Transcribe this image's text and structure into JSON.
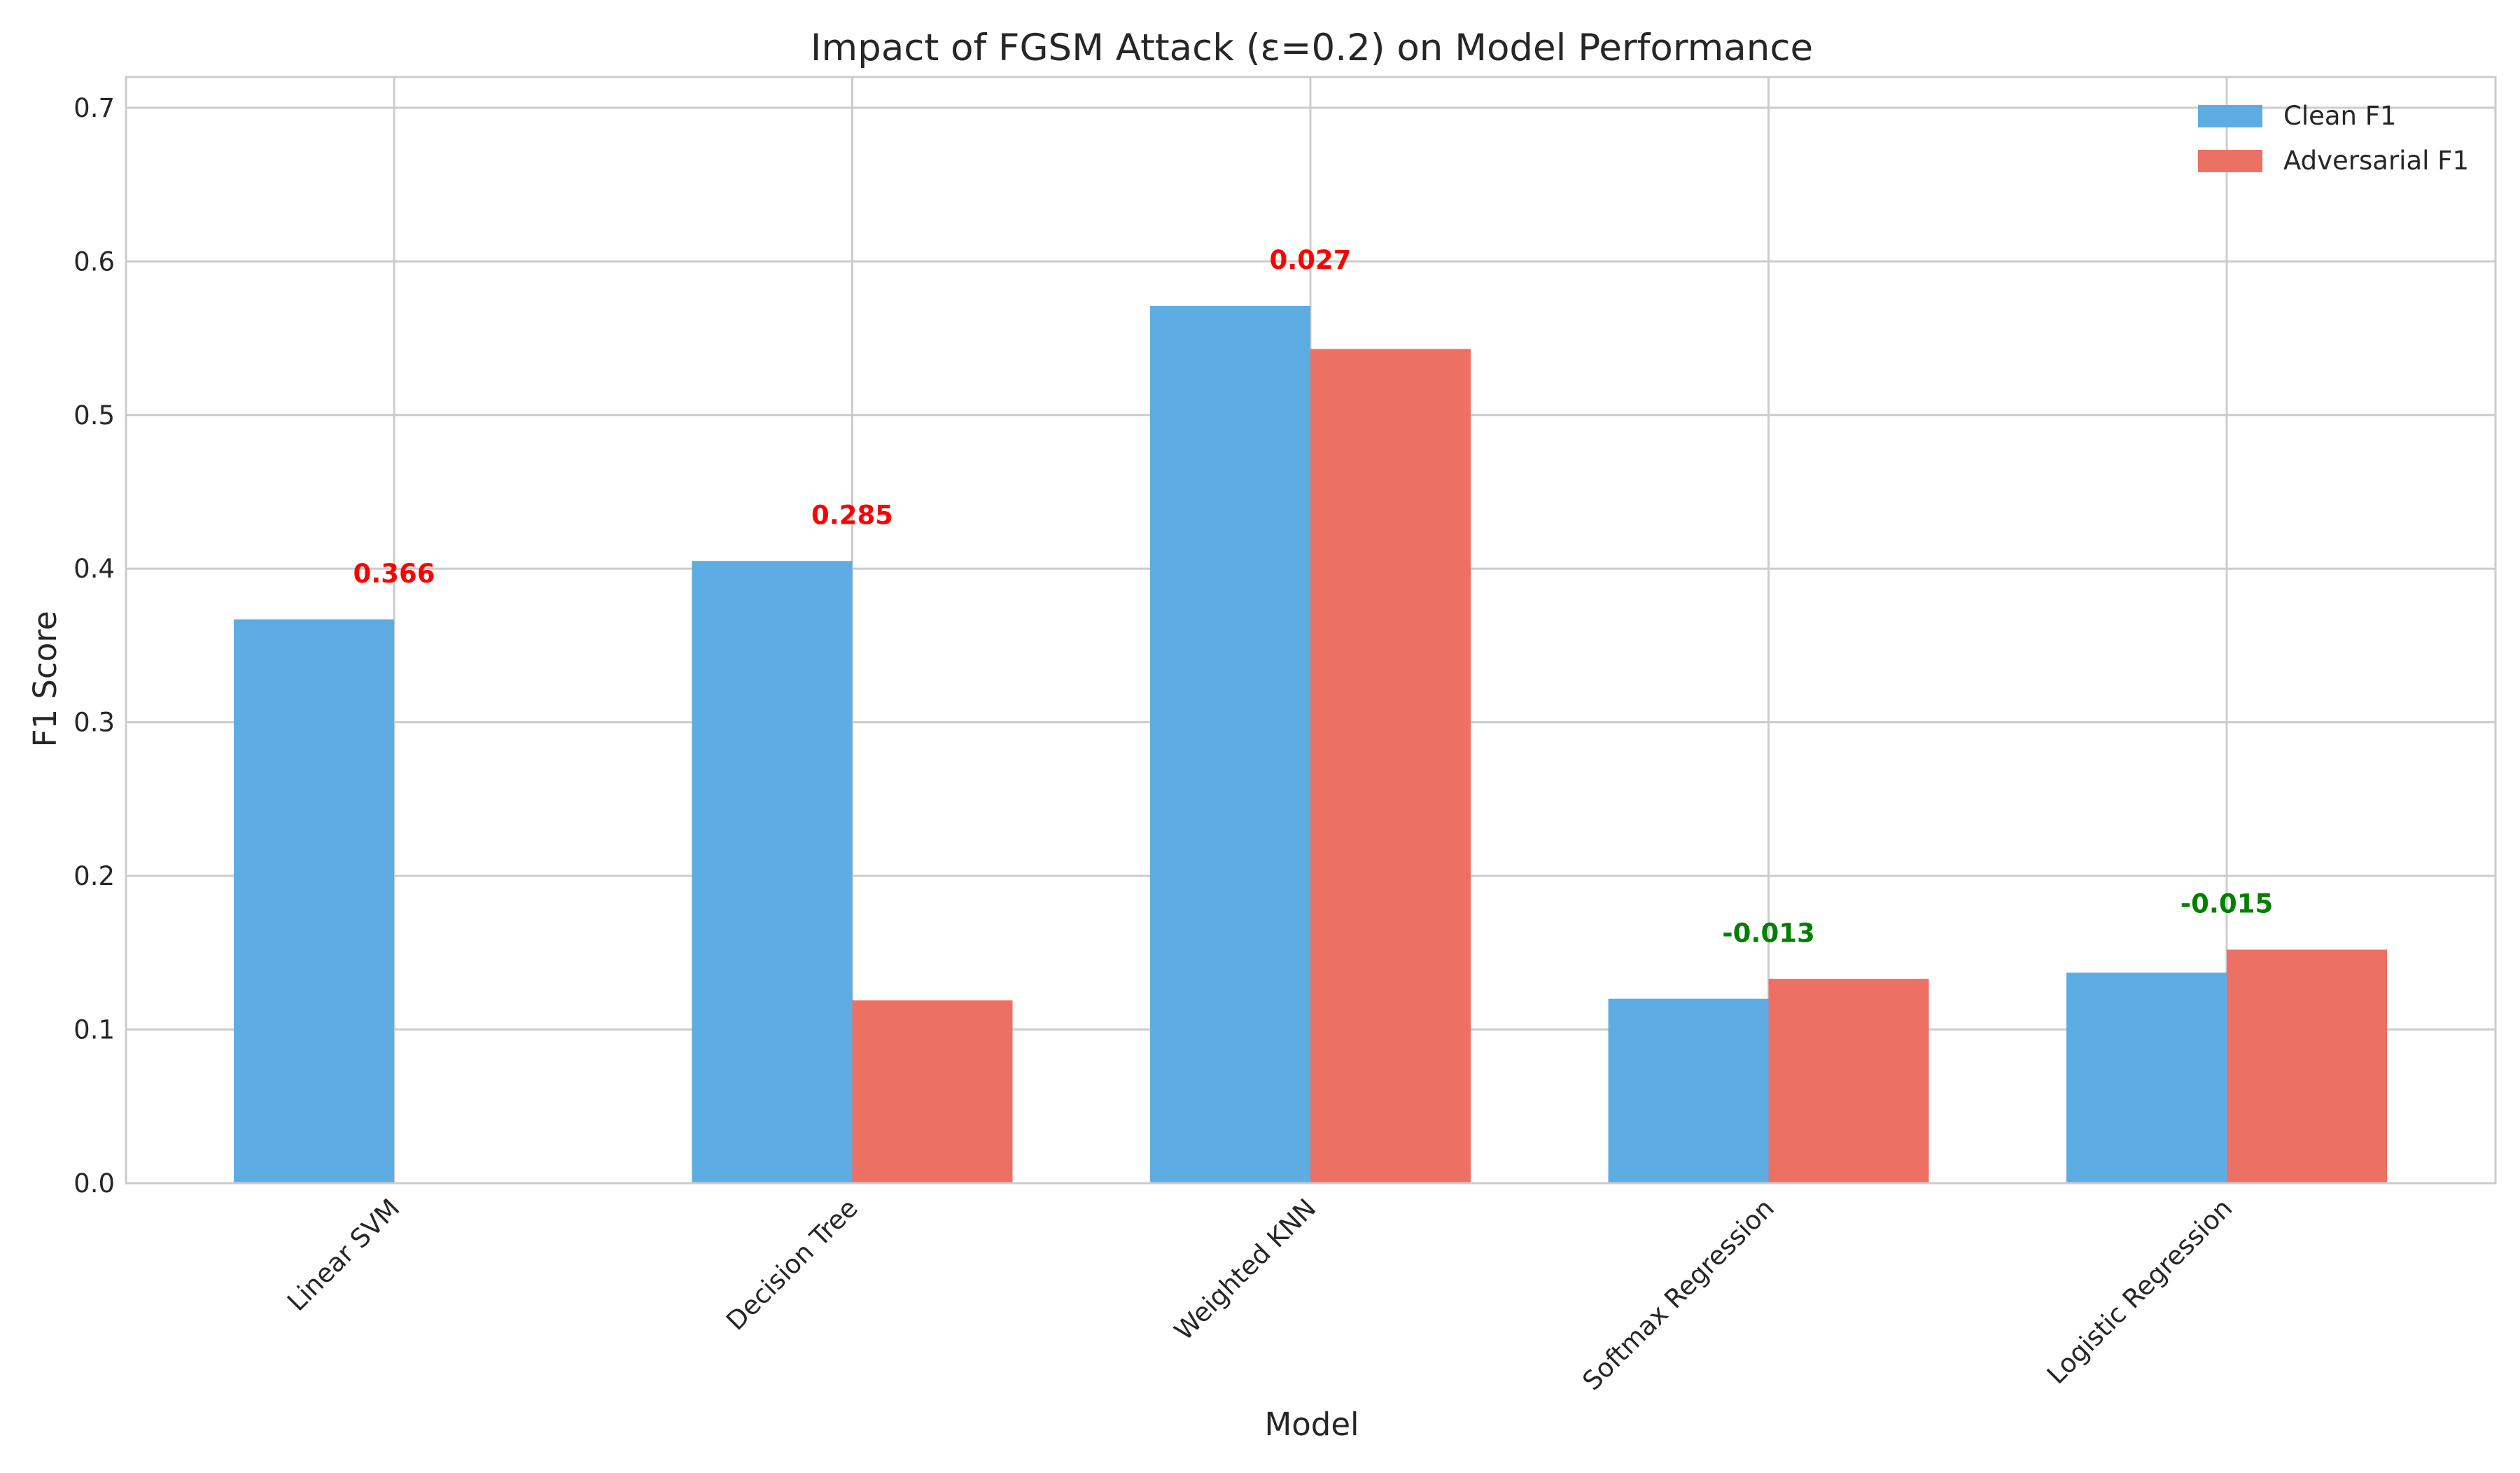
{
  "chart_data": {
    "type": "bar",
    "title": "Impact of FGSM Attack (ε=0.2) on Model Performance",
    "xlabel": "Model",
    "ylabel": "F1 Score",
    "ylim": [
      0,
      0.72
    ],
    "yticks": [
      "0.0",
      "0.1",
      "0.2",
      "0.3",
      "0.4",
      "0.5",
      "0.6",
      "0.7"
    ],
    "ytick_values": [
      0,
      0.1,
      0.2,
      0.3,
      0.4,
      0.5,
      0.6,
      0.7
    ],
    "grid": true,
    "legend_position": "top-right",
    "categories": [
      "Linear SVM",
      "Decision Tree",
      "Weighted KNN",
      "Softmax Regression",
      "Logistic Regression"
    ],
    "series": [
      {
        "name": "Clean F1",
        "color": "#5DADE2",
        "values": [
          0.367,
          0.405,
          0.571,
          0.12,
          0.137
        ]
      },
      {
        "name": "Adversarial F1",
        "color": "#EC7063",
        "values": [
          0.0,
          0.119,
          0.543,
          0.133,
          0.152
        ]
      }
    ],
    "annotations": [
      {
        "text": "0.366",
        "category": "Linear SVM",
        "value": 0.366,
        "color": "#FF0000"
      },
      {
        "text": "0.285",
        "category": "Decision Tree",
        "value": 0.285,
        "color": "#FF0000"
      },
      {
        "text": "0.027",
        "category": "Weighted KNN",
        "value": 0.027,
        "color": "#FF0000"
      },
      {
        "text": "-0.013",
        "category": "Softmax Regression",
        "value": -0.013,
        "color": "#008000"
      },
      {
        "text": "-0.015",
        "category": "Logistic Regression",
        "value": -0.015,
        "color": "#008000"
      }
    ]
  }
}
